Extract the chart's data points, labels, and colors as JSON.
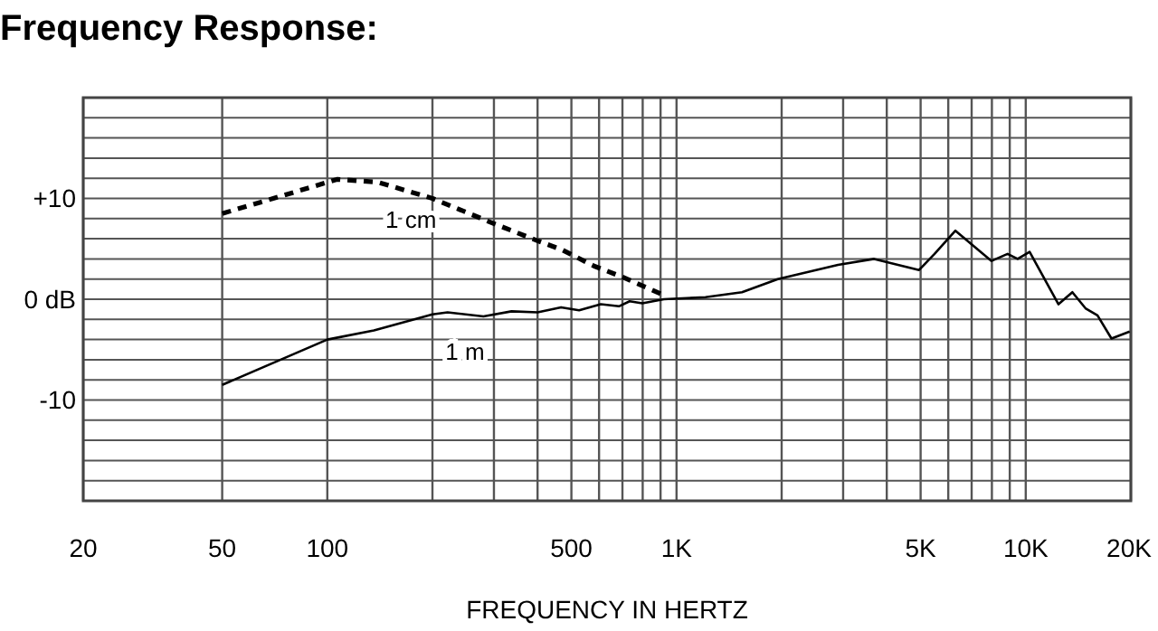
{
  "chart_data": {
    "type": "line",
    "title": "Frequency Response:",
    "xlabel": "FREQUENCY IN HERTZ",
    "log": "x",
    "xlim": [
      20,
      20000
    ],
    "xticks": [
      20,
      50,
      100,
      {
        "value": 200,
        "label": null
      },
      {
        "value": 300,
        "label": null
      },
      {
        "value": 400,
        "label": null
      },
      500,
      {
        "value": 600,
        "label": null
      },
      {
        "value": 700,
        "label": null
      },
      {
        "value": 800,
        "label": null
      },
      {
        "value": 900,
        "label": null
      },
      {
        "value": 1000,
        "label": "1K"
      },
      {
        "value": 2000,
        "label": null
      },
      {
        "value": 3000,
        "label": null
      },
      {
        "value": 4000,
        "label": null
      },
      {
        "value": 5000,
        "label": "5K"
      },
      {
        "value": 6000,
        "label": null
      },
      {
        "value": 7000,
        "label": null
      },
      {
        "value": 8000,
        "label": null
      },
      {
        "value": 9000,
        "label": null
      },
      {
        "value": 10000,
        "label": "10K"
      },
      {
        "value": 20000,
        "label": "20K"
      }
    ],
    "ylim": [
      -20,
      20
    ],
    "yticks": [
      {
        "value": -20,
        "label": null
      },
      {
        "value": -18,
        "label": null
      },
      {
        "value": -16,
        "label": null
      },
      {
        "value": -14,
        "label": null
      },
      {
        "value": -12,
        "label": null
      },
      -10,
      {
        "value": -8,
        "label": null
      },
      {
        "value": -6,
        "label": null
      },
      {
        "value": -4,
        "label": null
      },
      {
        "value": -2,
        "label": null
      },
      {
        "value": 0,
        "label": "0 dB"
      },
      {
        "value": 2,
        "label": null
      },
      {
        "value": 4,
        "label": null
      },
      {
        "value": 6,
        "label": null
      },
      {
        "value": 8,
        "label": null
      },
      {
        "value": 10,
        "label": "+10"
      },
      {
        "value": 12,
        "label": null
      },
      {
        "value": 14,
        "label": null
      },
      {
        "value": 16,
        "label": null
      },
      {
        "value": 18,
        "label": null
      },
      {
        "value": 20,
        "label": null
      }
    ],
    "grid": true,
    "series": [
      {
        "name": "1 cm",
        "color": "#000000",
        "line_style": "dashed",
        "x": [
          50,
          70,
          107,
          140,
          200,
          300,
          400,
          470,
          580,
          700,
          920
        ],
        "values": [
          8.5,
          10,
          11.9,
          11.6,
          10,
          7.5,
          5.8,
          4.9,
          3.3,
          2.2,
          0.4
        ]
      },
      {
        "name": "1 m",
        "color": "#000000",
        "line_style": "solid",
        "x": [
          50,
          100,
          136,
          200,
          221,
          280,
          337,
          400,
          467,
          526,
          607,
          684,
          734,
          798,
          920,
          1210,
          1540,
          1950,
          2900,
          3680,
          4950,
          5480,
          6290,
          7980,
          8870,
          9480,
          10260,
          12410,
          13600,
          14830,
          16050,
          17600,
          19850
        ],
        "values": [
          -8.5,
          -4,
          -3.1,
          -1.5,
          -1.3,
          -1.7,
          -1.2,
          -1.3,
          -0.8,
          -1.1,
          -0.5,
          -0.7,
          -0.2,
          -0.4,
          0,
          0.2,
          0.7,
          2,
          3.4,
          4,
          2.9,
          4.5,
          6.8,
          3.8,
          4.5,
          4,
          4.7,
          -0.5,
          0.7,
          -0.9,
          -1.6,
          -3.9,
          -3.2
        ]
      }
    ]
  }
}
